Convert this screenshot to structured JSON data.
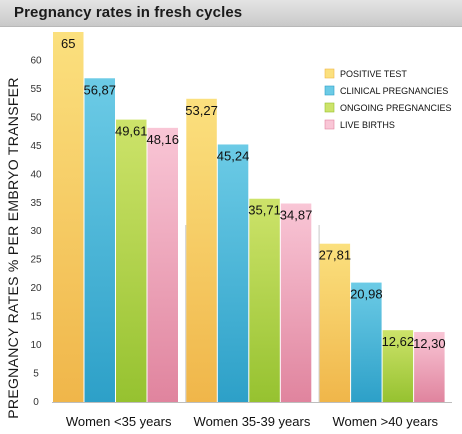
{
  "chart_data": {
    "type": "bar",
    "title": "Pregnancy rates in fresh cycles",
    "ylabel": "PREGNANCY RATES  % PER EMBRYO TRANSFER",
    "xlabel": "",
    "ylim": [
      0,
      65
    ],
    "yticks": [
      0,
      5,
      10,
      15,
      20,
      25,
      30,
      35,
      40,
      45,
      50,
      55,
      60
    ],
    "grid": false,
    "legend_position": "top-right",
    "categories": [
      "Women <35 years",
      "Women  35-39 years",
      "Women >40 years"
    ],
    "series": [
      {
        "name": "POSITIVE TEST",
        "values": [
          65,
          53.27,
          27.81
        ],
        "labels": [
          "65",
          "53,27",
          "27,81"
        ],
        "color": "#f0b64a",
        "color_light": "#fbe07e"
      },
      {
        "name": "CLINICAL PREGNANCIES",
        "values": [
          56.87,
          45.24,
          20.98
        ],
        "labels": [
          "56,87",
          "45,24",
          "20,98"
        ],
        "color": "#2da0c8",
        "color_light": "#6ccbe6"
      },
      {
        "name": "ONGOING PREGNANCIES",
        "values": [
          49.61,
          35.71,
          12.62
        ],
        "labels": [
          "49,61",
          "35,71",
          "12,62"
        ],
        "color": "#96c230",
        "color_light": "#cde36a"
      },
      {
        "name": "LIVE BIRTHS",
        "values": [
          48.16,
          34.87,
          12.3
        ],
        "labels": [
          "48,16",
          "34,87",
          "12,30"
        ],
        "color": "#e0849e",
        "color_light": "#f9c6d6"
      }
    ]
  }
}
